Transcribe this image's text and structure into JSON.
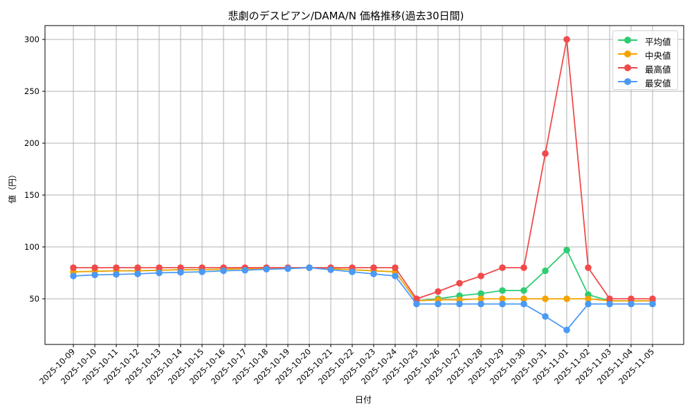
{
  "chart_data": {
    "type": "line",
    "title": "悲劇のデスピアン/DAMA/N 価格推移(過去30日間)",
    "xlabel": "日付",
    "ylabel": "値（円）",
    "ylim": [
      10,
      313
    ],
    "yticks": [
      50,
      100,
      150,
      200,
      250,
      300
    ],
    "grid": true,
    "legend_position": "upper right",
    "x": [
      "2025-10-09",
      "2025-10-10",
      "2025-10-11",
      "2025-10-12",
      "2025-10-13",
      "2025-10-14",
      "2025-10-15",
      "2025-10-16",
      "2025-10-17",
      "2025-10-18",
      "2025-10-19",
      "2025-10-20",
      "2025-10-21",
      "2025-10-22",
      "2025-10-23",
      "2025-10-24",
      "2025-10-25",
      "2025-10-26",
      "2025-10-27",
      "2025-10-28",
      "2025-10-29",
      "2025-10-30",
      "2025-10-31",
      "2025-11-01",
      "2025-11-02",
      "2025-11-03",
      "2025-11-04",
      "2025-11-05"
    ],
    "series": [
      {
        "name": "平均値",
        "color": "#2ecc71",
        "values": [
          76,
          76.5,
          77,
          77,
          77.5,
          78,
          78,
          78.5,
          79,
          79,
          79.5,
          80,
          79,
          78,
          77,
          76,
          48,
          50,
          53,
          55,
          58,
          58,
          77,
          97,
          54,
          48,
          48,
          48
        ]
      },
      {
        "name": "中央値",
        "color": "#f5a300",
        "values": [
          76,
          76.5,
          77,
          77,
          77.5,
          78,
          78,
          78.5,
          79,
          79,
          79.5,
          80,
          79,
          78,
          77,
          76,
          48,
          49,
          49,
          50,
          50,
          50,
          50,
          50,
          50,
          48,
          48,
          48
        ]
      },
      {
        "name": "最高値",
        "color": "#f04a4a",
        "values": [
          80,
          80,
          80,
          80,
          80,
          80,
          80,
          80,
          80,
          80,
          80,
          80,
          80,
          80,
          80,
          80,
          50,
          57,
          65,
          72,
          80,
          80,
          190,
          300,
          80,
          50,
          50,
          50
        ]
      },
      {
        "name": "最安値",
        "color": "#4a9af5",
        "values": [
          72,
          73,
          73.5,
          74,
          75,
          75.5,
          76,
          77,
          77.5,
          78.5,
          79,
          80,
          78,
          76,
          74,
          72,
          45,
          45,
          45,
          45,
          45,
          45,
          33,
          20,
          45,
          45,
          45,
          45
        ]
      }
    ]
  }
}
